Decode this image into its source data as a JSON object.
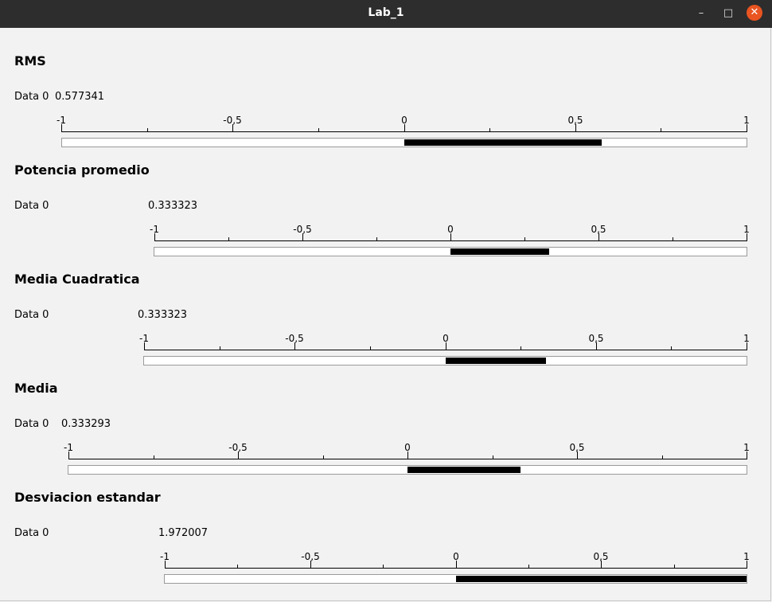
{
  "window": {
    "title": "Lab_1",
    "min_icon": "minimize-icon",
    "max_icon": "maximize-icon",
    "close_icon": "close-icon"
  },
  "scale_labels": [
    "-1",
    "-0,5",
    "0",
    "0,5",
    "1"
  ],
  "sections": [
    {
      "id": "rms",
      "title": "RMS",
      "data_label": "Data 0",
      "value_text": "0.577341",
      "value": 0.577341
    },
    {
      "id": "potencia",
      "title": "Potencia promedio",
      "data_label": "Data 0",
      "value_text": "0.333323",
      "value": 0.333323
    },
    {
      "id": "cuadratica",
      "title": "Media Cuadratica",
      "data_label": "Data 0",
      "value_text": "0.333323",
      "value": 0.333323
    },
    {
      "id": "media",
      "title": "Media",
      "data_label": "Data 0",
      "value_text": "0.333293",
      "value": 0.333293
    },
    {
      "id": "desviacion",
      "title": "Desviacion estandar",
      "data_label": "Data 0",
      "value_text": "1.972007",
      "value": 1.972007
    }
  ]
}
